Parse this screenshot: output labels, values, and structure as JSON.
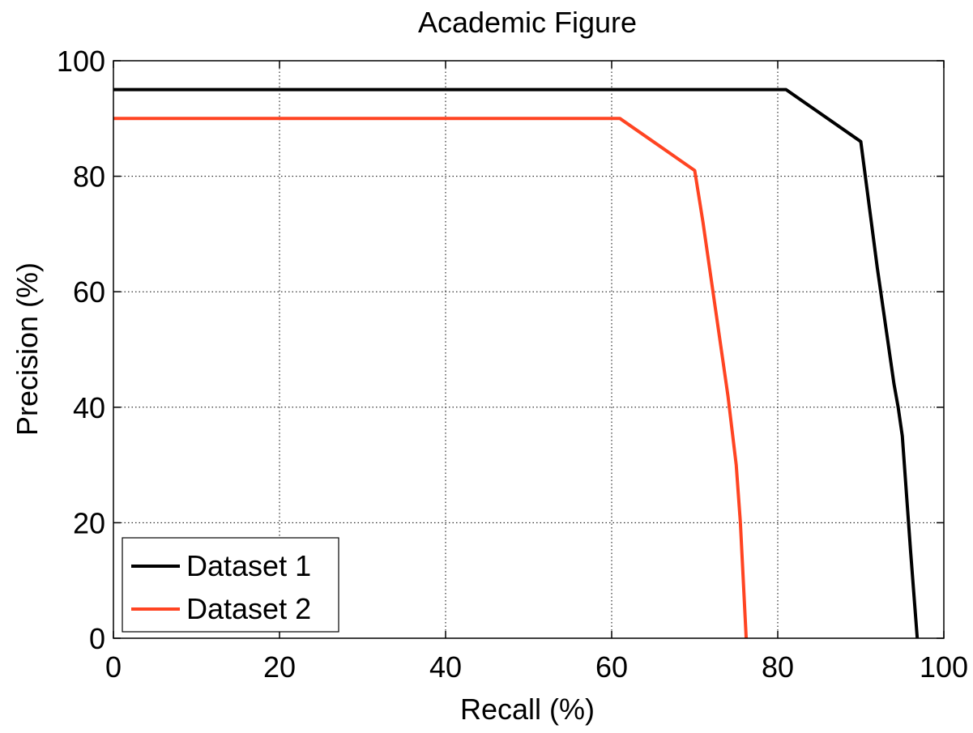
{
  "chart_data": {
    "type": "line",
    "title": "Academic Figure",
    "xlabel": "Recall (%)",
    "ylabel": "Precision (%)",
    "xlim": [
      0,
      100
    ],
    "ylim": [
      0,
      100
    ],
    "xticks": [
      0,
      20,
      40,
      60,
      80,
      100
    ],
    "yticks": [
      0,
      20,
      40,
      60,
      80,
      100
    ],
    "grid": true,
    "legend_position": "bottom-left",
    "series": [
      {
        "name": "Dataset 1",
        "color": "#000000",
        "x": [
          0,
          81,
          85,
          90,
          91,
          92,
          93,
          94,
          94.5,
          95,
          96,
          96.8
        ],
        "y": [
          95,
          95,
          91,
          86,
          75,
          64,
          54,
          44,
          40,
          35,
          15,
          0
        ]
      },
      {
        "name": "Dataset 2",
        "color": "#ff4422",
        "x": [
          0,
          61,
          64,
          66,
          68,
          70,
          71,
          72,
          73,
          74,
          75,
          75.5,
          76.2
        ],
        "y": [
          90,
          90,
          87,
          85,
          83,
          81,
          72,
          62,
          52,
          42,
          30,
          20,
          0
        ]
      }
    ]
  }
}
